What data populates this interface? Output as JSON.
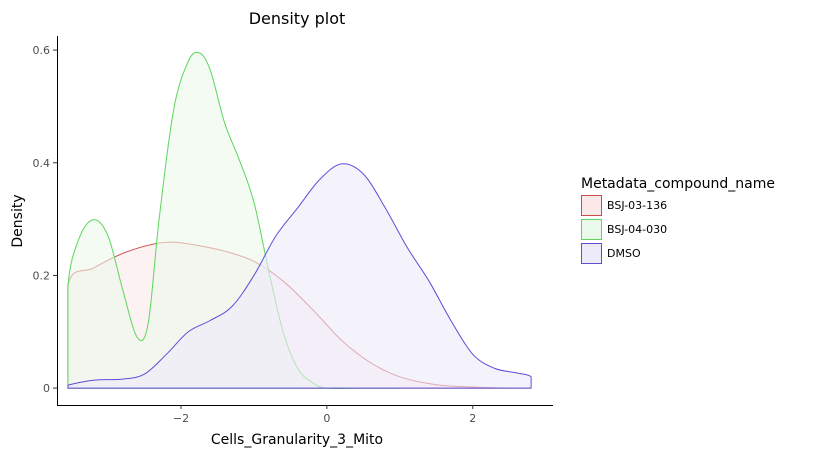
{
  "chart_data": {
    "type": "area",
    "title": "Density plot",
    "xlabel": "Cells_Granularity_3_Mito",
    "ylabel": "Density",
    "xlim": [
      -3.7,
      3.1
    ],
    "ylim": [
      -0.03,
      0.625
    ],
    "x_ticks": [
      -2,
      0,
      2
    ],
    "x_tick_labels": [
      "−2",
      "0",
      "2"
    ],
    "y_ticks": [
      0,
      0.2,
      0.4,
      0.6
    ],
    "y_tick_labels": [
      "0",
      "0.2",
      "0.4",
      "0.6"
    ],
    "grid": false,
    "legend": {
      "title": "Metadata_compound_name",
      "position": "right"
    },
    "series": [
      {
        "name": "BSJ-03-136",
        "color": "#cc4c4c",
        "fill": "#fbe9e9",
        "points": [
          [
            -3.55,
            0.0
          ],
          [
            -3.55,
            0.183
          ],
          [
            -3.2,
            0.213
          ],
          [
            -2.8,
            0.239
          ],
          [
            -2.4,
            0.255
          ],
          [
            -2.1,
            0.259
          ],
          [
            -1.8,
            0.254
          ],
          [
            -1.4,
            0.243
          ],
          [
            -1.0,
            0.225
          ],
          [
            -0.6,
            0.19
          ],
          [
            -0.2,
            0.14
          ],
          [
            0.2,
            0.085
          ],
          [
            0.6,
            0.045
          ],
          [
            1.0,
            0.02
          ],
          [
            1.5,
            0.006
          ],
          [
            2.0,
            0.002
          ],
          [
            2.5,
            0.0
          ],
          [
            2.8,
            0.0
          ]
        ]
      },
      {
        "name": "BSJ-04-030",
        "color": "#5cd65c",
        "fill": "#ebf9eb",
        "points": [
          [
            -3.55,
            0.0
          ],
          [
            -3.55,
            0.18
          ],
          [
            -3.4,
            0.265
          ],
          [
            -3.2,
            0.299
          ],
          [
            -3.0,
            0.27
          ],
          [
            -2.8,
            0.175
          ],
          [
            -2.6,
            0.09
          ],
          [
            -2.45,
            0.115
          ],
          [
            -2.3,
            0.3
          ],
          [
            -2.1,
            0.495
          ],
          [
            -1.9,
            0.58
          ],
          [
            -1.75,
            0.595
          ],
          [
            -1.6,
            0.565
          ],
          [
            -1.4,
            0.47
          ],
          [
            -1.2,
            0.405
          ],
          [
            -1.0,
            0.33
          ],
          [
            -0.8,
            0.21
          ],
          [
            -0.6,
            0.1
          ],
          [
            -0.4,
            0.035
          ],
          [
            -0.2,
            0.01
          ],
          [
            0.0,
            0.0
          ],
          [
            0.5,
            0.0
          ],
          [
            1.0,
            0.0
          ]
        ]
      },
      {
        "name": "DMSO",
        "color": "#5b4fd6",
        "fill": "#ecebfa",
        "points": [
          [
            -3.55,
            0.0
          ],
          [
            -3.55,
            0.005
          ],
          [
            -3.2,
            0.014
          ],
          [
            -2.8,
            0.016
          ],
          [
            -2.5,
            0.025
          ],
          [
            -2.2,
            0.06
          ],
          [
            -1.9,
            0.1
          ],
          [
            -1.6,
            0.12
          ],
          [
            -1.3,
            0.145
          ],
          [
            -1.0,
            0.2
          ],
          [
            -0.7,
            0.27
          ],
          [
            -0.4,
            0.32
          ],
          [
            -0.1,
            0.37
          ],
          [
            0.2,
            0.398
          ],
          [
            0.5,
            0.38
          ],
          [
            0.8,
            0.32
          ],
          [
            1.1,
            0.25
          ],
          [
            1.4,
            0.19
          ],
          [
            1.7,
            0.12
          ],
          [
            2.0,
            0.06
          ],
          [
            2.3,
            0.035
          ],
          [
            2.6,
            0.027
          ],
          [
            2.8,
            0.02
          ],
          [
            2.8,
            0.0
          ]
        ]
      }
    ]
  }
}
